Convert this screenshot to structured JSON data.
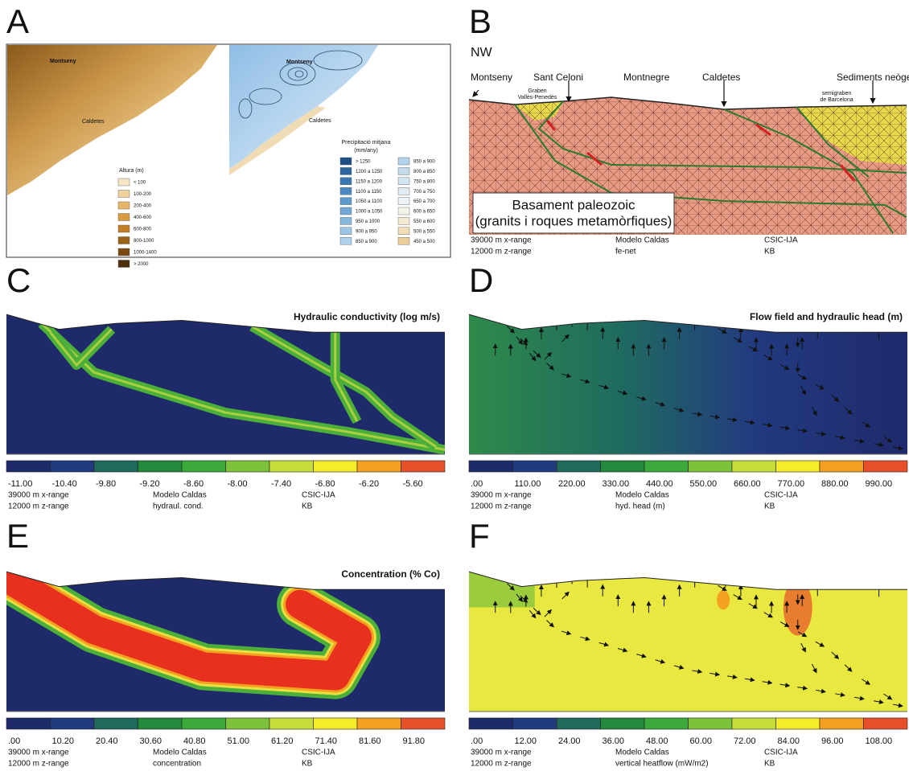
{
  "panels": [
    {
      "letter": "A",
      "map_labels": [
        "Montseny",
        "Caldetes",
        "Montseny",
        "Caldetes"
      ],
      "altura_legend": {
        "title": "Altura (m)",
        "items": [
          "< 100",
          "100-200",
          "200-400",
          "400-600",
          "600-800",
          "800-1000",
          "1000-1400",
          "> 2000"
        ]
      },
      "precip_legend": {
        "title": [
          "Precipitació mitjana",
          "(mm/any)"
        ],
        "items": [
          "> 1250",
          "1200 a 1250",
          "1150 a 1200",
          "1100 a 1150",
          "1050 a 1100",
          "1000 a 1050",
          "950 a 1000",
          "900 a 950",
          "850 a 900",
          "850 a 900",
          "800 a 850",
          "750 a 800",
          "700 a 750",
          "650 a 700",
          "600 a 650",
          "550 a 600",
          "500 a 550",
          "450 a 500"
        ]
      }
    },
    {
      "letter": "B",
      "direction": "NW",
      "place_labels": [
        "Montseny",
        "Sant Celoni",
        "Montnegre",
        "Caldetes",
        "Sediments neògens"
      ],
      "graben_label": [
        "Graben",
        "Vallès-Penedès"
      ],
      "semigraben_label": [
        "semigraben",
        "de Barcelona"
      ],
      "basement_label": [
        "Basament paleozoic",
        "(granits i roques metamòrfiques)"
      ],
      "footer": [
        [
          "39000 m x-range",
          "Modelo Caldas",
          "CSIC-IJA"
        ],
        [
          "12000 m z-range",
          "fe-net",
          "KB"
        ]
      ]
    },
    {
      "letter": "C",
      "title": "Hydraulic conductivity (log m/s)",
      "scale": [
        "-11.00",
        "-10.40",
        "-9.80",
        "-9.20",
        "-8.60",
        "-8.00",
        "-7.40",
        "-6.80",
        "-6.20",
        "-5.60"
      ],
      "footer": [
        [
          "39000 m x-range",
          "Modelo Caldas",
          "CSIC-IJA"
        ],
        [
          "12000 m z-range",
          "hydraul. cond.",
          "KB"
        ]
      ]
    },
    {
      "letter": "D",
      "title": "Flow field and hydraulic head (m)",
      "scale": [
        ".00",
        "110.00",
        "220.00",
        "330.00",
        "440.00",
        "550.00",
        "660.00",
        "770.00",
        "880.00",
        "990.00"
      ],
      "footer": [
        [
          "39000 m x-range",
          "Modelo Caldas",
          "CSIC-IJA"
        ],
        [
          "12000 m z-range",
          "hyd. head (m)",
          "KB"
        ]
      ]
    },
    {
      "letter": "E",
      "title": "Concentration (% Co)",
      "scale": [
        ".00",
        "10.20",
        "20.40",
        "30.60",
        "40.80",
        "51.00",
        "61.20",
        "71.40",
        "81.60",
        "91.80"
      ],
      "footer": [
        [
          "39000 m x-range",
          "Modelo Caldas",
          "CSIC-IJA"
        ],
        [
          "12000 m z-range",
          "concentration",
          "KB"
        ]
      ]
    },
    {
      "letter": "F",
      "scale": [
        ".00",
        "12.00",
        "24.00",
        "36.00",
        "48.00",
        "60.00",
        "72.00",
        "84.00",
        "96.00",
        "108.00"
      ],
      "footer": [
        [
          "39000 m x-range",
          "Modelo Caldas",
          "CSIC-IJA"
        ],
        [
          "12000 m z-range",
          "vertical heatflow (mW/m2)",
          "KB"
        ]
      ]
    }
  ]
}
